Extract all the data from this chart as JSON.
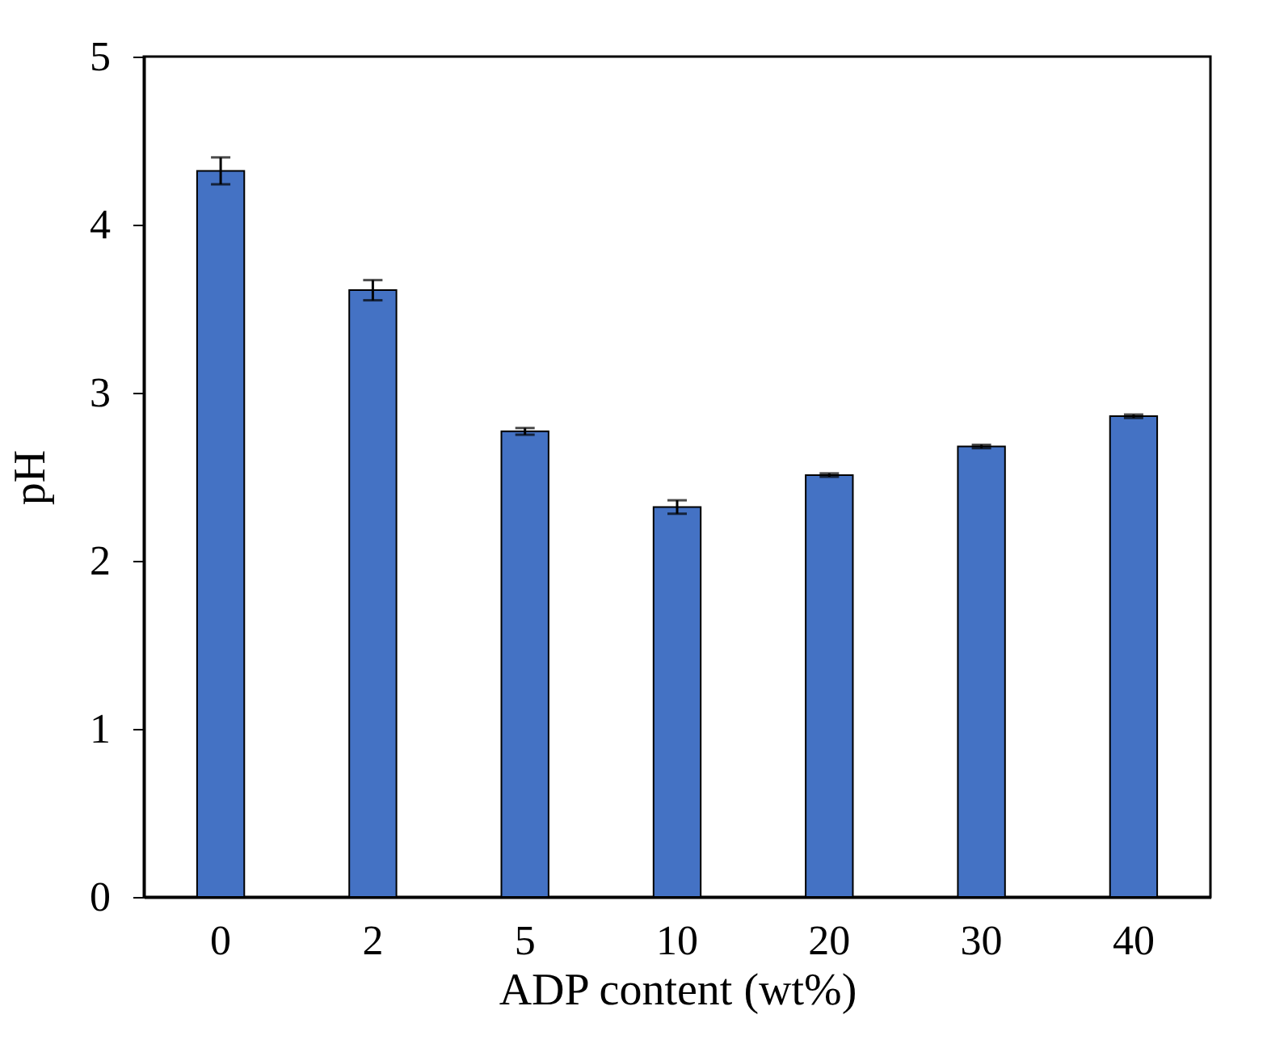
{
  "chart_data": {
    "type": "bar",
    "xlabel": "ADP content (wt%)",
    "ylabel": "pH",
    "categories": [
      "0",
      "2",
      "5",
      "10",
      "20",
      "30",
      "40"
    ],
    "values": [
      4.32,
      3.61,
      2.77,
      2.32,
      2.51,
      2.68,
      2.86
    ],
    "errors": [
      0.08,
      0.06,
      0.02,
      0.04,
      0.01,
      0.01,
      0.01
    ],
    "color": "#4472c4",
    "ylim": [
      0,
      5
    ],
    "yticks": [
      0,
      1,
      2,
      3,
      4,
      5
    ],
    "grid": false
  }
}
